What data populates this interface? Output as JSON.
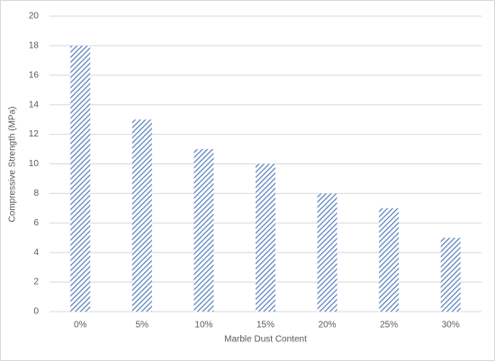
{
  "chart_data": {
    "type": "bar",
    "x_label": "Marble Dust Content",
    "y_label": "Compressive Strength (MPa)",
    "categories": [
      "0%",
      "5%",
      "10%",
      "15%",
      "20%",
      "25%",
      "30%"
    ],
    "values": [
      18,
      13,
      11,
      10,
      8,
      7,
      5
    ],
    "color": "#4a76b8",
    "ylim": [
      0,
      20
    ],
    "yticks": [
      0,
      2,
      4,
      6,
      8,
      10,
      12,
      14,
      16,
      18,
      20
    ],
    "grid": true
  }
}
